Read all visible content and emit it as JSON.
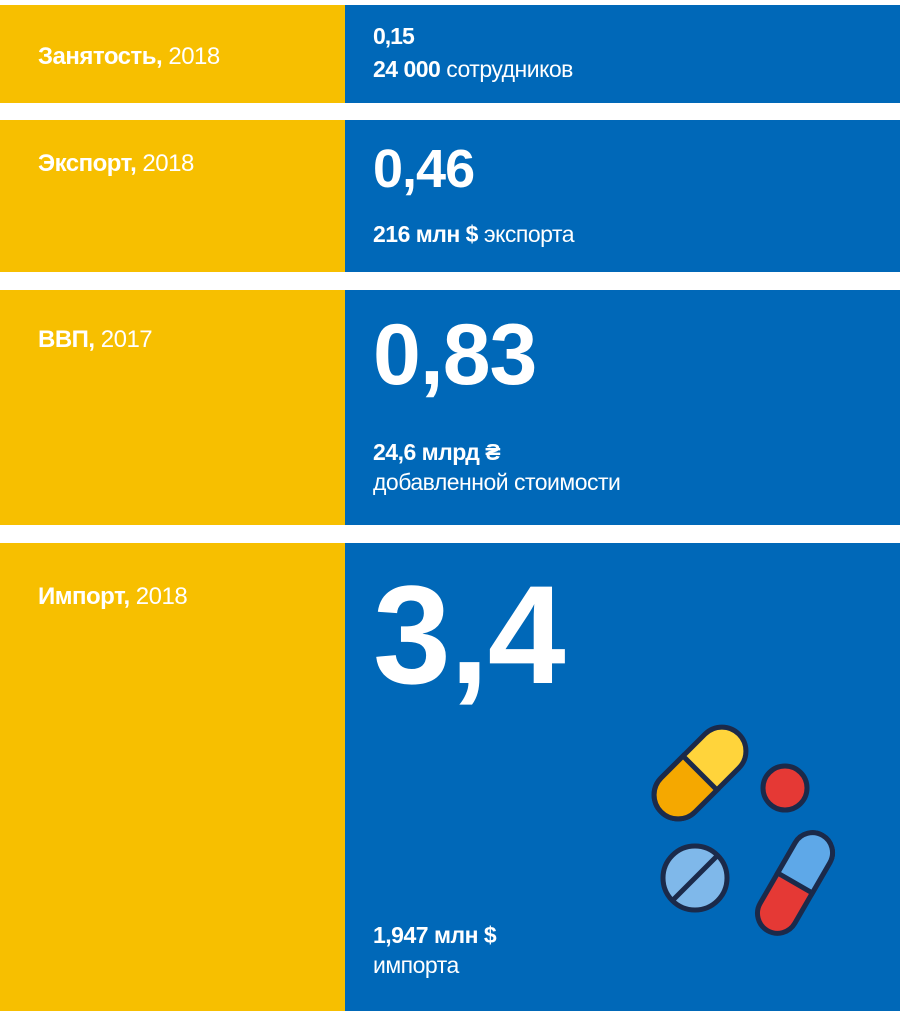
{
  "rows": [
    {
      "label": "Занятость,",
      "year": "2018",
      "value": "0,15",
      "detail_bold": "24 000",
      "detail": "сотрудников"
    },
    {
      "label": "Экспорт,",
      "year": "2018",
      "value": "0,46",
      "detail_bold": "216 млн $",
      "detail": "экспорта"
    },
    {
      "label": "ВВП,",
      "year": "2017",
      "value": "0,83",
      "detail_bold": "24,6 млрд ₴",
      "detail": "добавленной стоимости"
    },
    {
      "label": "Импорт,",
      "year": "2018",
      "value": "3,4",
      "detail_bold": "1,947 млн $",
      "detail": "импорта"
    }
  ]
}
